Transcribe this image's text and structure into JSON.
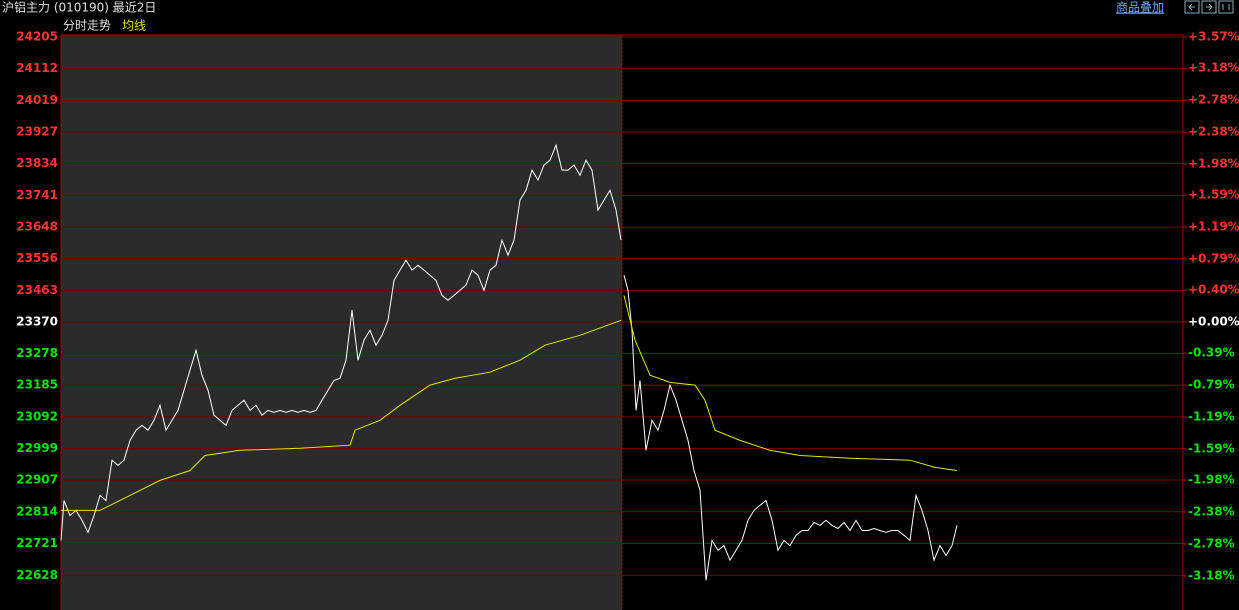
{
  "header": {
    "title": "沪铝主力 (010190) 最近2日",
    "overlay_link": "商品叠加"
  },
  "chart_data": {
    "type": "line",
    "label": "分时走势",
    "ylim": [
      22535,
      24205
    ],
    "yticks": [
      24205,
      24112,
      24019,
      23927,
      23834,
      23741,
      23648,
      23556,
      23463,
      23370,
      23278,
      23185,
      23092,
      22999,
      22907,
      22814,
      22721,
      22628
    ],
    "y2lim": [
      -3.57,
      3.57
    ],
    "y2ticks": [
      {
        "value": 3.57,
        "label": "+3.57%"
      },
      {
        "value": 3.18,
        "label": "+3.18%"
      },
      {
        "value": 2.78,
        "label": "+2.78%"
      },
      {
        "value": 2.38,
        "label": "+2.38%"
      },
      {
        "value": 1.98,
        "label": "+1.98%"
      },
      {
        "value": 1.59,
        "label": "+1.59%"
      },
      {
        "value": 1.19,
        "label": "+1.19%"
      },
      {
        "value": 0.79,
        "label": "+0.79%"
      },
      {
        "value": 0.4,
        "label": "+0.40%"
      },
      {
        "value": 0,
        "label": "+0.00%"
      },
      {
        "value": -0.39,
        "label": "-0.39%"
      },
      {
        "value": -0.79,
        "label": "-0.79%"
      },
      {
        "value": -1.19,
        "label": "-1.19%"
      },
      {
        "value": -1.59,
        "label": "-1.59%"
      },
      {
        "value": -1.98,
        "label": "-1.98%"
      },
      {
        "value": -2.38,
        "label": "-2.38%"
      },
      {
        "value": -2.78,
        "label": "-2.78%"
      },
      {
        "value": -3.18,
        "label": "-3.18%"
      }
    ],
    "xlim": [
      0,
      1122
    ],
    "grid": true,
    "up_color": "#ff3232",
    "down_color": "#00e600",
    "flat_color": "#ffffff",
    "series": [
      {
        "color": "#ffffff",
        "x": [
          0,
          3,
          9,
          15,
          21,
          27,
          33,
          39,
          45,
          51,
          57,
          63,
          69,
          75,
          81,
          87,
          93,
          99,
          105,
          111,
          117,
          123,
          129,
          135,
          141,
          147,
          153,
          159,
          165,
          171,
          177,
          183,
          189,
          195,
          201,
          207,
          213,
          219,
          225,
          231,
          237,
          243,
          249,
          255,
          261,
          267,
          273,
          279,
          285,
          291,
          297,
          303,
          309,
          315,
          321,
          327,
          333,
          339,
          345,
          351,
          357,
          363,
          369,
          375,
          381,
          387,
          393,
          399,
          405,
          411,
          417,
          423,
          429,
          435,
          441,
          447,
          453,
          459,
          465,
          471,
          477,
          483,
          489,
          495,
          501,
          507,
          513,
          519,
          525,
          531,
          537,
          543,
          549,
          555,
          560,
          561,
          563,
          567,
          571,
          575,
          579,
          585,
          591,
          597,
          603,
          609,
          615,
          621,
          627,
          633,
          639,
          645,
          651,
          657,
          663,
          669,
          675,
          681,
          687,
          693,
          699,
          705,
          711,
          717,
          723,
          729,
          735,
          741,
          747,
          753,
          759,
          765,
          771,
          777,
          783,
          789,
          795,
          801,
          807,
          813,
          819,
          825,
          831,
          837,
          843,
          849,
          855,
          861,
          867,
          873,
          879,
          885,
          891,
          896
        ],
        "values": [
          22730,
          22847,
          22803,
          22818,
          22789,
          22754,
          22803,
          22862,
          22847,
          22965,
          22950,
          22965,
          23023,
          23053,
          23067,
          23053,
          23082,
          23126,
          23053,
          23082,
          23111,
          23170,
          23229,
          23287,
          23214,
          23170,
          23097,
          23082,
          23067,
          23111,
          23126,
          23141,
          23111,
          23126,
          23097,
          23111,
          23105,
          23111,
          23105,
          23111,
          23105,
          23111,
          23105,
          23111,
          23141,
          23170,
          23199,
          23205,
          23258,
          23405,
          23258,
          23317,
          23346,
          23302,
          23331,
          23375,
          23492,
          23522,
          23551,
          23522,
          23536,
          23522,
          23507,
          23492,
          23448,
          23434,
          23448,
          23463,
          23478,
          23522,
          23507,
          23463,
          23522,
          23536,
          23610,
          23566,
          23610,
          23727,
          23756,
          23815,
          23786,
          23830,
          23844,
          23888,
          23815,
          23815,
          23830,
          23800,
          23844,
          23815,
          23698,
          23727,
          23756,
          23698,
          23610,
          null,
          23507,
          23463,
          23346,
          23111,
          23199,
          22994,
          23082,
          23053,
          23111,
          23185,
          23141,
          23082,
          23023,
          22935,
          22877,
          22613,
          22730,
          22701,
          22715,
          22672,
          22701,
          22730,
          22789,
          22818,
          22833,
          22847,
          22789,
          22701,
          22730,
          22715,
          22745,
          22759,
          22759,
          22783,
          22774,
          22789,
          22774,
          22765,
          22783,
          22759,
          22789,
          22759,
          22759,
          22765,
          22759,
          22754,
          22759,
          22759,
          22745,
          22730,
          22862,
          22818,
          22759,
          22672,
          22715,
          22686,
          22715,
          22774
        ]
      },
      {
        "name": "均线",
        "color": "#e6e600",
        "x": [
          0,
          39,
          69,
          99,
          129,
          144,
          179,
          239,
          289,
          294,
          319,
          339,
          369,
          394,
          429,
          459,
          484,
          519,
          560,
          561,
          563,
          574,
          589,
          609,
          634,
          644,
          654,
          679,
          709,
          739,
          789,
          849,
          874,
          896
        ],
        "values": [
          22818,
          22818,
          22862,
          22906,
          22935,
          22979,
          22994,
          23000,
          23009,
          23053,
          23082,
          23126,
          23185,
          23205,
          23223,
          23258,
          23302,
          23331,
          23375,
          null,
          23448,
          23317,
          23214,
          23193,
          23185,
          23141,
          23053,
          23023,
          22994,
          22979,
          22971,
          22965,
          22944,
          22935
        ]
      }
    ]
  }
}
